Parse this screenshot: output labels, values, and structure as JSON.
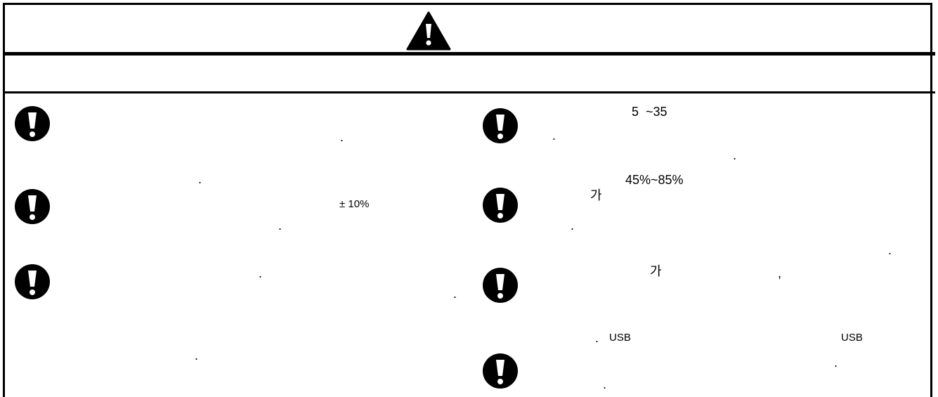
{
  "section": {
    "header_icon": "warning-triangle-icon",
    "subheader": ""
  },
  "left": {
    "item_icon": "exclamation-circle-icon",
    "items": [
      {
        "dot1": "."
      },
      {
        "dot0": ".",
        "text": "± 10%",
        "dot1": "."
      },
      {
        "dot0": ".",
        "dot1": "."
      },
      {
        "dot0": "."
      }
    ]
  },
  "right": {
    "item_icon": "exclamation-circle-icon",
    "items": [
      {
        "text": "5  ~35",
        "dot1": ".",
        "dot2": "."
      },
      {
        "text": "45%~85%",
        "text2": "가",
        "dot1": "."
      },
      {
        "dot0": ".",
        "text": "가",
        "text2": ","
      },
      {
        "dot0": ".",
        "text": "USB",
        "text2": "USB",
        "dot1": ".",
        "dot2": "."
      }
    ]
  }
}
